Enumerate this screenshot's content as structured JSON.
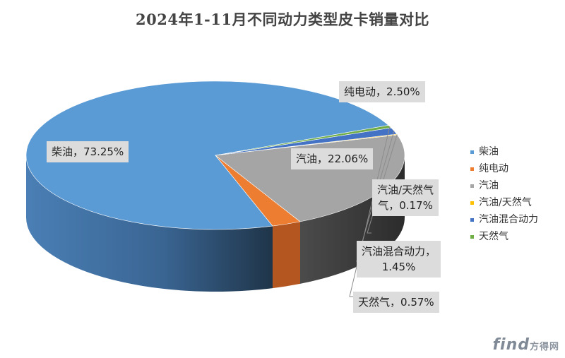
{
  "chart_data": {
    "type": "pie",
    "title": "2024年1-11月不同动力类型皮卡销量对比",
    "legend_position": "right",
    "slices": [
      {
        "name": "柴油",
        "value": 73.25,
        "color": "#5b9bd5",
        "label_name": "柴油",
        "label_value": "73.25%"
      },
      {
        "name": "纯电动",
        "value": 2.5,
        "color": "#ed7d31",
        "label_name": "纯电动",
        "label_value": "2.50%"
      },
      {
        "name": "汽油",
        "value": 22.06,
        "color": "#a5a5a5",
        "label_name": "汽油",
        "label_value": "22.06%"
      },
      {
        "name": "汽油/天然气",
        "value": 0.17,
        "color": "#ffc000",
        "label_name": "汽油/天然气",
        "label_value": "0.17%"
      },
      {
        "name": "汽油混合动力",
        "value": 1.45,
        "color": "#4472c4",
        "label_name": "汽油混合动力",
        "label_value": "1.45%"
      },
      {
        "name": "天然气",
        "value": 0.57,
        "color": "#70ad47",
        "label_name": "天然气",
        "label_value": "0.57%"
      }
    ]
  },
  "watermark": {
    "logo": "find",
    "text": "方得网"
  }
}
